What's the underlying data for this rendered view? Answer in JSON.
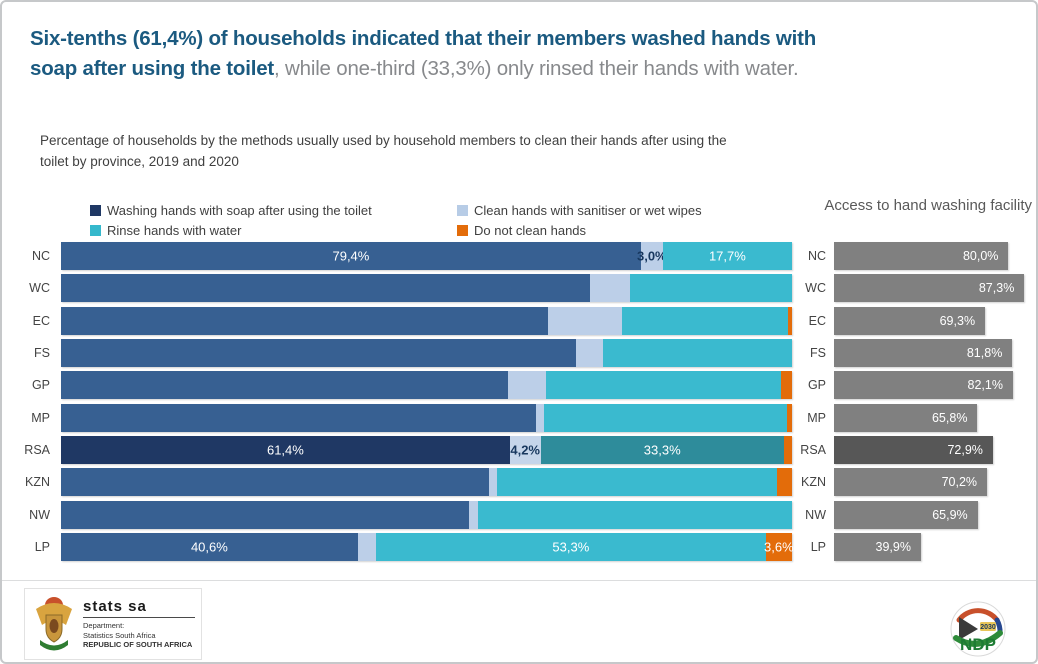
{
  "headline": {
    "line1": "Six-tenths (61,4%) of households indicated that their members washed hands with",
    "line2_bold": "soap after using the toilet",
    "line2_rest": ", while one-third (33,3%) only rinsed their hands with water."
  },
  "subtitle": {
    "line1": "Percentage of households by the methods usually used by household members to clean their hands after using the",
    "line2": "toilet by province, 2019 and 2020"
  },
  "legend": [
    {
      "label": "Washing hands with soap after using the toilet",
      "color": "#1F3864"
    },
    {
      "label": "Clean hands with sanitiser or wet wipes",
      "color": "#B7CCE6"
    },
    {
      "label": "Rinse hands with water",
      "color": "#35B8CC"
    },
    {
      "label": "Do not clean hands",
      "color": "#E36C0A"
    }
  ],
  "chart_data": [
    {
      "type": "bar",
      "stacked": true,
      "orientation": "horizontal",
      "title": "Percentage of households by the methods usually used by household members to clean their hands after using the toilet by province, 2019 and 2020",
      "categories": [
        "NC",
        "WC",
        "EC",
        "FS",
        "GP",
        "MP",
        "RSA",
        "KZN",
        "NW",
        "LP"
      ],
      "series": [
        {
          "name": "Washing hands with soap after using the toilet",
          "values": [
            79.4,
            72.4,
            66.6,
            70.5,
            61.1,
            65.0,
            61.4,
            58.6,
            55.8,
            40.6
          ]
        },
        {
          "name": "Clean hands with sanitiser or wet wipes",
          "values": [
            3.0,
            5.5,
            10.1,
            3.6,
            5.2,
            1.1,
            4.2,
            1.0,
            1.3,
            2.5
          ]
        },
        {
          "name": "Rinse hands with water",
          "values": [
            17.7,
            22.1,
            22.8,
            25.9,
            32.2,
            33.2,
            33.3,
            38.4,
            42.9,
            53.3
          ]
        },
        {
          "name": "Do not clean hands",
          "values": [
            0.0,
            0.0,
            0.5,
            0.0,
            1.5,
            0.7,
            1.1,
            2.0,
            0.0,
            3.6
          ]
        }
      ],
      "visible_labels": {
        "NC": [
          "79,4%",
          "3,0%",
          "17,7%",
          ""
        ],
        "RSA": [
          "61,4%",
          "4,2%",
          "33,3%",
          ""
        ],
        "LP": [
          "40,6%",
          "",
          "53,3%",
          "3,6%"
        ]
      },
      "highlight_category": "RSA",
      "xlim": [
        0,
        100
      ],
      "grid": false,
      "legend_position": "top"
    },
    {
      "type": "bar",
      "orientation": "horizontal",
      "title": "Access to hand washing facility",
      "categories": [
        "NC",
        "WC",
        "EC",
        "FS",
        "GP",
        "MP",
        "RSA",
        "KZN",
        "NW",
        "LP"
      ],
      "values": [
        80.0,
        87.3,
        69.3,
        81.8,
        82.1,
        65.8,
        72.9,
        70.2,
        65.9,
        39.9
      ],
      "labels": [
        "80,0%",
        "87,3%",
        "69,3%",
        "81,8%",
        "82,1%",
        "65,8%",
        "72,9%",
        "70,2%",
        "65,9%",
        "39,9%"
      ],
      "highlight_category": "RSA",
      "xlim": [
        0,
        100
      ],
      "grid": false
    }
  ],
  "colors": {
    "series": [
      "#376092",
      "#BCCFE8",
      "#3ABACF",
      "#E36C0A"
    ],
    "series_highlight": [
      "#1F3864",
      "#C5D5EA",
      "#2E8C9B",
      "#E36C0A"
    ],
    "access_bar": "#808080",
    "access_bar_highlight": "#575757",
    "headline_accent": "#1B5A80",
    "headline_gray": "#87898C",
    "access_title_gray": "#595959"
  },
  "footer": {
    "statssa": {
      "brand": "stats sa",
      "line1": "Department:",
      "line2": "Statistics South Africa",
      "line3": "REPUBLIC OF SOUTH AFRICA"
    },
    "ndp": {
      "text": "NDP",
      "year": "2030"
    }
  }
}
